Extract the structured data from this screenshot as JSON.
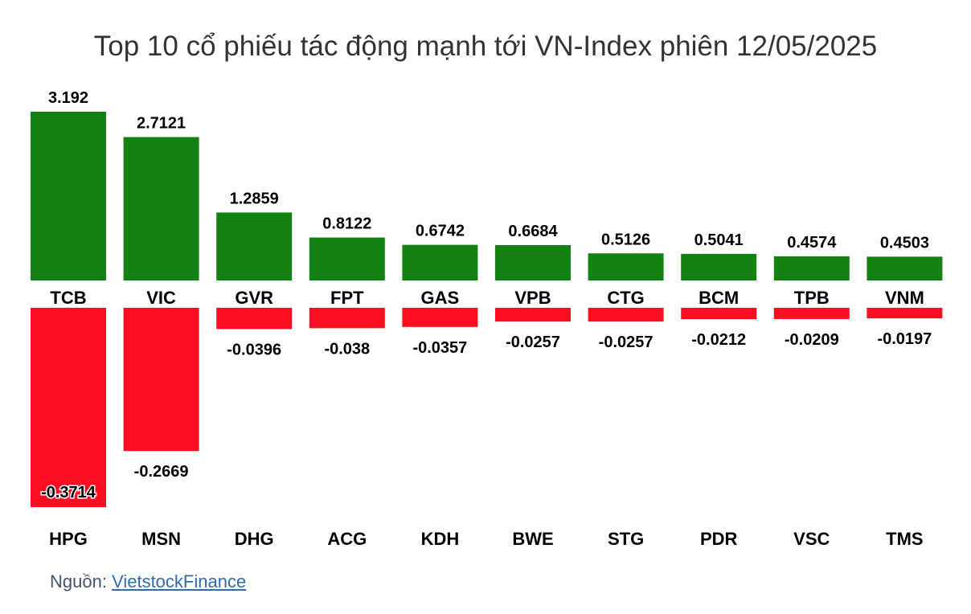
{
  "title": "Top 10 cổ phiếu tác động mạnh tới VN-Index phiên 12/05/2025",
  "source": {
    "label": "Nguồn: ",
    "link_text": "VietstockFinance"
  },
  "colors": {
    "positive": "#138212",
    "negative": "#fd0d20"
  },
  "chart_data": [
    {
      "type": "bar",
      "series": [
        {
          "categories": [
            "TCB",
            "VIC",
            "GVR",
            "FPT",
            "GAS",
            "VPB",
            "CTG",
            "BCM",
            "TPB",
            "VNM"
          ],
          "values": [
            3.192,
            2.7121,
            1.2859,
            0.8122,
            0.6742,
            0.6684,
            0.5126,
            0.5041,
            0.4574,
            0.4503
          ],
          "value_labels": [
            "3.192",
            "2.7121",
            "1.2859",
            "0.8122",
            "0.6742",
            "0.6684",
            "0.5126",
            "0.5041",
            "0.4574",
            "0.4503"
          ]
        }
      ]
    },
    {
      "type": "bar",
      "series": [
        {
          "categories": [
            "HPG",
            "MSN",
            "DHG",
            "ACG",
            "KDH",
            "BWE",
            "STG",
            "PDR",
            "VSC",
            "TMS"
          ],
          "values": [
            -0.3714,
            -0.2669,
            -0.0396,
            -0.038,
            -0.0357,
            -0.0257,
            -0.0257,
            -0.0212,
            -0.0209,
            -0.0197
          ],
          "value_labels": [
            "-0.3714",
            "-0.2669",
            "-0.0396",
            "-0.038",
            "-0.0357",
            "-0.0257",
            "-0.0257",
            "-0.0212",
            "-0.0209",
            "-0.0197"
          ]
        }
      ]
    }
  ]
}
